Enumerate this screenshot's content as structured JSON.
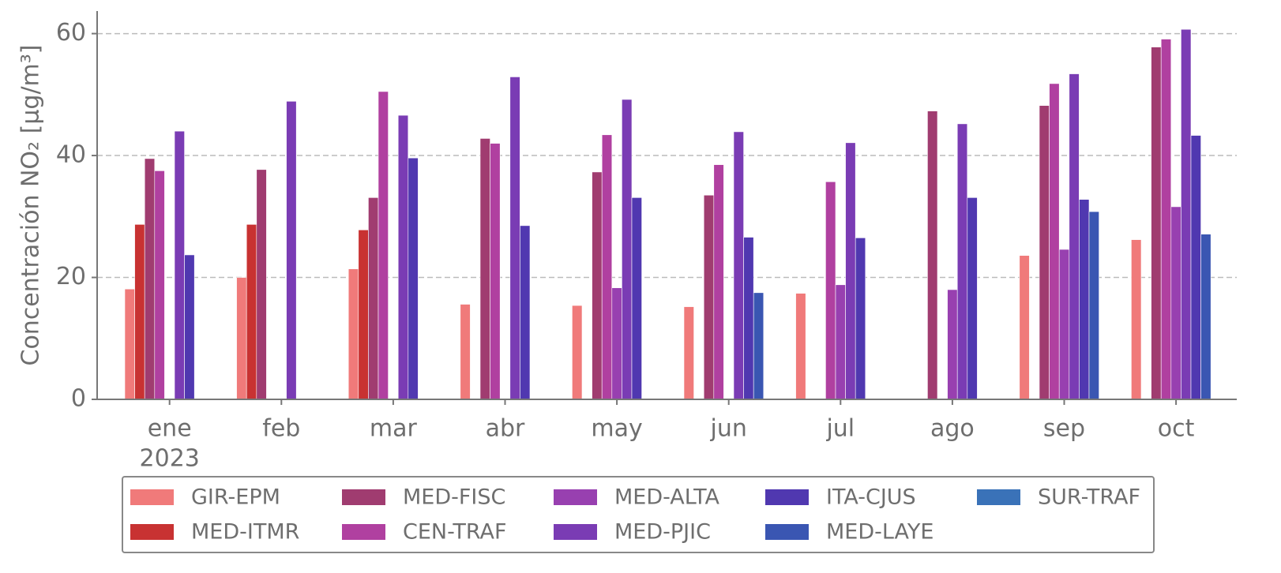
{
  "chart_data": {
    "type": "bar",
    "ylabel": "Concentración NO₂ [μg/m³]",
    "categories": [
      "ene",
      "feb",
      "mar",
      "abr",
      "may",
      "jun",
      "jul",
      "ago",
      "sep",
      "oct"
    ],
    "year": "2023",
    "ylim": [
      0,
      63.7
    ],
    "yticks": [
      0,
      20,
      40,
      60
    ],
    "grid": true,
    "series": [
      {
        "name": "GIR-EPM",
        "color": "#f07a7a",
        "values": [
          18.1,
          20,
          21.4,
          15.6,
          15.4,
          15.2,
          17.4,
          null,
          23.6,
          26.2
        ]
      },
      {
        "name": "MED-ITMR",
        "color": "#c83232",
        "values": [
          28.7,
          28.7,
          27.8,
          null,
          null,
          null,
          null,
          null,
          null,
          null
        ]
      },
      {
        "name": "MED-FISC",
        "color": "#a03c70",
        "values": [
          39.5,
          37.7,
          33.1,
          42.8,
          37.3,
          33.5,
          null,
          47.3,
          48.2,
          57.8
        ]
      },
      {
        "name": "CEN-TRAF",
        "color": "#b040a0",
        "values": [
          37.5,
          null,
          50.5,
          42,
          43.4,
          38.5,
          35.7,
          null,
          51.8,
          59.1
        ]
      },
      {
        "name": "MED-ALTA",
        "color": "#9840b0",
        "values": [
          null,
          null,
          null,
          null,
          18.3,
          null,
          18.8,
          18,
          24.6,
          31.6
        ]
      },
      {
        "name": "MED-PJIC",
        "color": "#7a3cb4",
        "values": [
          44,
          48.9,
          46.6,
          52.9,
          49.2,
          43.9,
          42.1,
          45.2,
          53.4,
          60.7
        ]
      },
      {
        "name": "ITA-CJUS",
        "color": "#5038b0",
        "values": [
          23.7,
          null,
          39.6,
          28.5,
          33.1,
          26.6,
          26.5,
          33.1,
          32.8,
          43.3
        ]
      },
      {
        "name": "MED-LAYE",
        "color": "#3a56b2",
        "values": [
          null,
          null,
          null,
          null,
          null,
          17.5,
          null,
          null,
          30.8,
          27.1
        ]
      },
      {
        "name": "SUR-TRAF",
        "color": "#3a72b8",
        "values": [
          null,
          null,
          null,
          null,
          null,
          null,
          null,
          null,
          null,
          null
        ]
      }
    ]
  }
}
